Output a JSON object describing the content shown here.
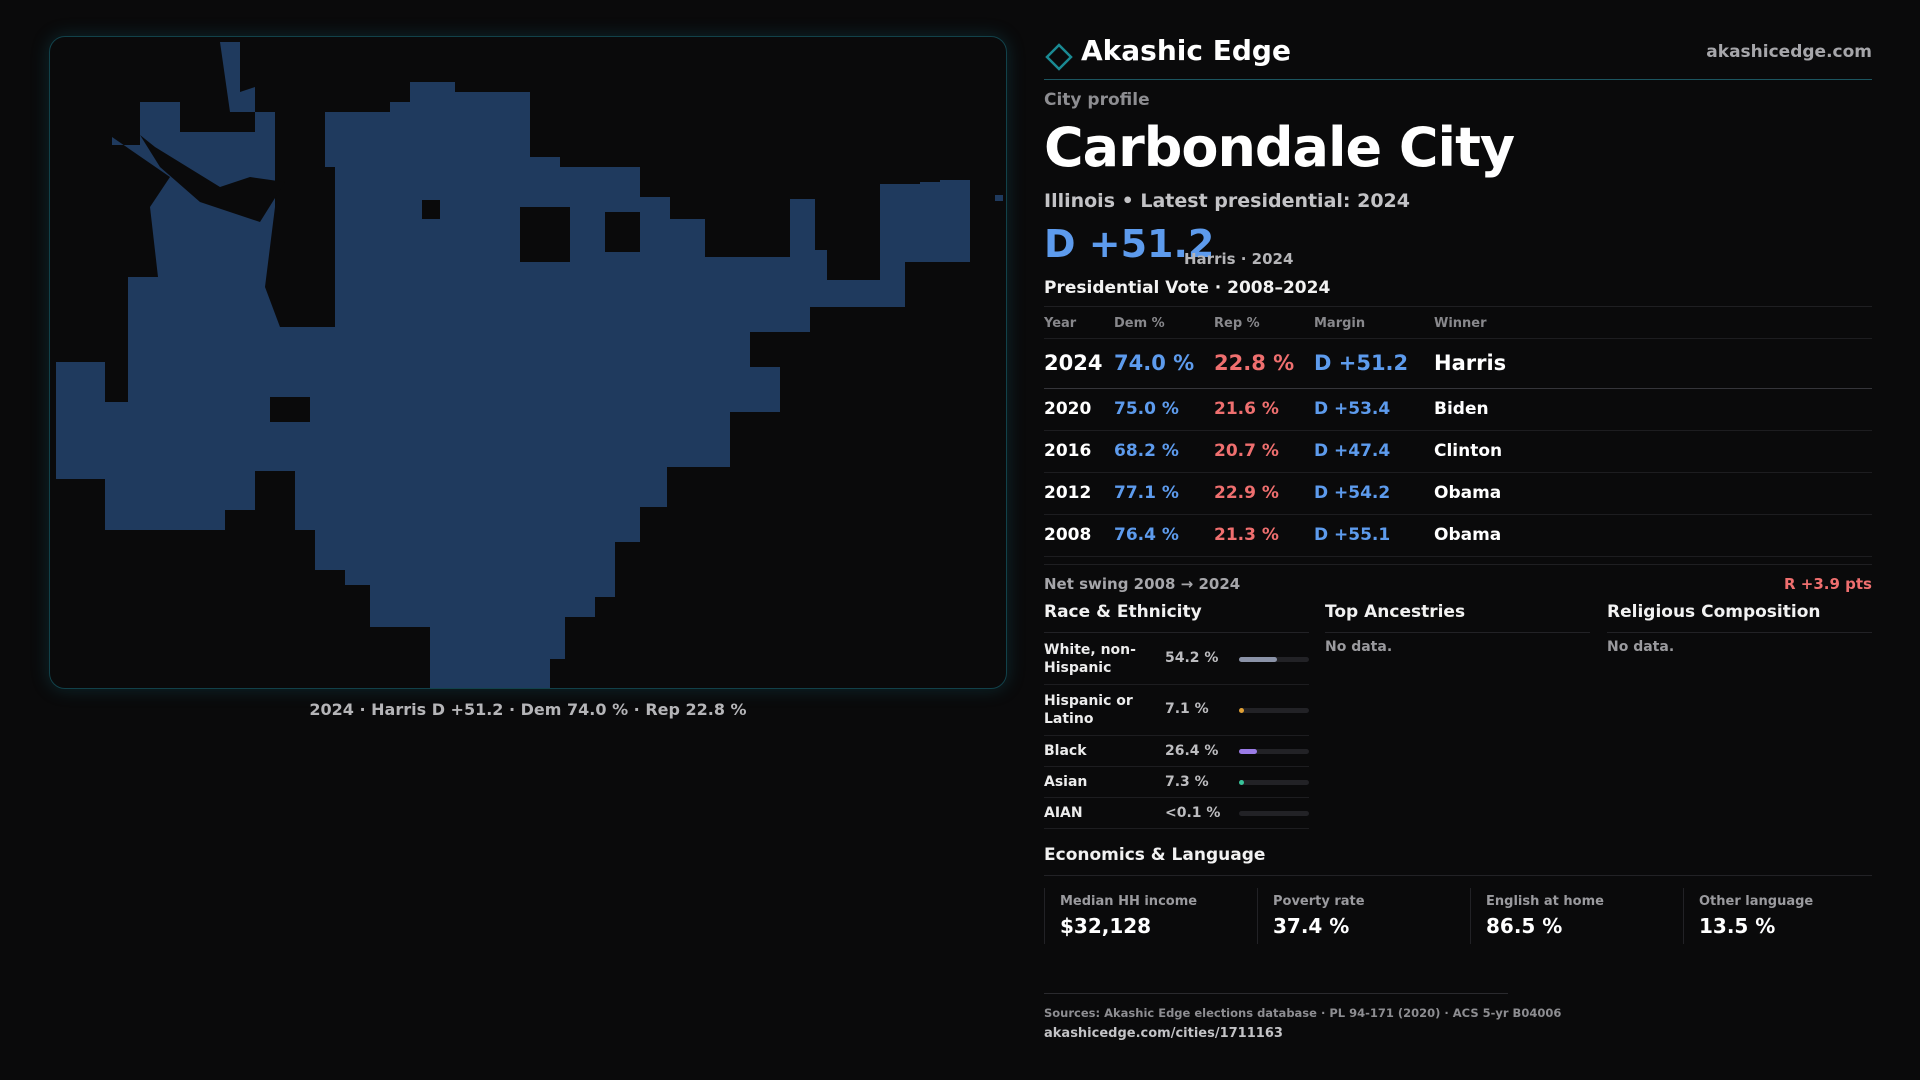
{
  "map": {
    "caption": "2024 · Harris D +51.2 · Dem 74.0 % · Rep 22.8 %",
    "fill_color": "#1f3a5e"
  },
  "header": {
    "brand": "Akashic Edge",
    "site": "akashicedge.com",
    "logo_icon": "diamond-icon"
  },
  "profile": {
    "kicker": "City profile",
    "title": "Carbondale City",
    "subtitle": "Illinois • Latest presidential: 2024",
    "margin": "D +51.2",
    "margin_note": "Harris · 2024"
  },
  "presidential": {
    "title": "Presidential Vote · 2008–2024",
    "columns": [
      "Year",
      "Dem %",
      "Rep %",
      "Margin",
      "Winner"
    ],
    "rows": [
      {
        "year": "2024",
        "dem": "74.0 %",
        "rep": "22.8 %",
        "margin": "D +51.2",
        "winner": "Harris"
      },
      {
        "year": "2020",
        "dem": "75.0 %",
        "rep": "21.6 %",
        "margin": "D +53.4",
        "winner": "Biden"
      },
      {
        "year": "2016",
        "dem": "68.2 %",
        "rep": "20.7 %",
        "margin": "D +47.4",
        "winner": "Clinton"
      },
      {
        "year": "2012",
        "dem": "77.1 %",
        "rep": "22.9 %",
        "margin": "D +54.2",
        "winner": "Obama"
      },
      {
        "year": "2008",
        "dem": "76.4 %",
        "rep": "21.3 %",
        "margin": "D +55.1",
        "winner": "Obama"
      }
    ],
    "swing_label": "Net swing 2008 → 2024",
    "swing_value": "R +3.9 pts"
  },
  "race": {
    "title": "Race & Ethnicity",
    "rows": [
      {
        "label": "White, non-Hispanic",
        "value": "54.2 %",
        "share": 0.542,
        "color": "#8b93a8"
      },
      {
        "label": "Hispanic or Latino",
        "value": "7.1 %",
        "share": 0.071,
        "color": "#e0a035"
      },
      {
        "label": "Black",
        "value": "26.4 %",
        "share": 0.264,
        "color": "#9a7be6"
      },
      {
        "label": "Asian",
        "value": "7.3 %",
        "share": 0.073,
        "color": "#38c49a"
      },
      {
        "label": "AIAN",
        "value": "<0.1 %",
        "share": 0.0,
        "color": "#6a6a70"
      }
    ]
  },
  "ancestries": {
    "title": "Top Ancestries",
    "empty": "No data."
  },
  "religion": {
    "title": "Religious Composition",
    "empty": "No data."
  },
  "economics": {
    "title": "Economics & Language",
    "cards": [
      {
        "label": "Median HH income",
        "value": "$32,128"
      },
      {
        "label": "Poverty rate",
        "value": "37.4 %"
      },
      {
        "label": "English at home",
        "value": "86.5 %"
      },
      {
        "label": "Other language",
        "value": "13.5 %"
      }
    ]
  },
  "footer": {
    "sources": "Sources: Akashic Edge elections database · PL 94-171 (2020) · ACS 5-yr B04006",
    "url": "akashicedge.com/cities/1711163"
  }
}
